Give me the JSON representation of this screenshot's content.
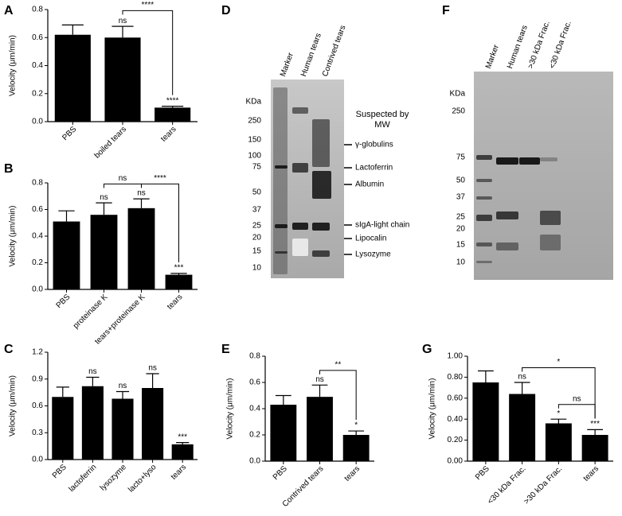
{
  "chart_data": [
    {
      "type": "bar",
      "panel": "A",
      "ylabel": "Velocity (μm/min)",
      "color": "#000000",
      "categories": [
        "PBS",
        "boiled tears",
        "tears"
      ],
      "values": [
        0.62,
        0.6,
        0.1
      ],
      "errors": [
        0.07,
        0.08,
        0.01
      ],
      "bar_labels": [
        null,
        "ns",
        "****"
      ],
      "brackets": [
        {
          "between": [
            1,
            2
          ],
          "label": "****"
        }
      ],
      "ylim": [
        0,
        0.8
      ],
      "yticks": [
        {
          "value": 0,
          "label": "0.0"
        },
        0.2,
        0.4,
        0.6,
        0.8
      ]
    },
    {
      "type": "bar",
      "panel": "B",
      "ylabel": "Velocity (μm/min)",
      "color": "#000000",
      "categories": [
        "PBS",
        "proteinase K",
        "tears+proteinase K",
        "tears"
      ],
      "values": [
        0.51,
        0.56,
        0.61,
        0.11
      ],
      "errors": [
        0.08,
        0.09,
        0.07,
        0.01
      ],
      "bar_labels": [
        null,
        "ns",
        "ns",
        "***"
      ],
      "brackets": [
        {
          "between": [
            1,
            2
          ],
          "label": "ns"
        },
        {
          "between": [
            2,
            3
          ],
          "label": "****"
        }
      ],
      "ylim": [
        0,
        0.8
      ],
      "yticks": [
        {
          "value": 0,
          "label": "0.0"
        },
        0.2,
        0.4,
        0.6,
        0.8
      ]
    },
    {
      "type": "bar",
      "panel": "C",
      "ylabel": "Velocity (μm/min)",
      "color": "#000000",
      "categories": [
        "PBS",
        "lactoferrin",
        "lysozyme",
        "lacto+lyso",
        "tears"
      ],
      "values": [
        0.7,
        0.82,
        0.68,
        0.8,
        0.17
      ],
      "errors": [
        0.11,
        0.1,
        0.08,
        0.16,
        0.02
      ],
      "bar_labels": [
        null,
        "ns",
        "ns",
        "ns",
        "***"
      ],
      "brackets": [],
      "ylim": [
        0,
        1.2
      ],
      "yticks": [
        {
          "value": 0,
          "label": "0.0"
        },
        0.3,
        0.6,
        0.9,
        1.2
      ]
    },
    {
      "type": "bar",
      "panel": "E",
      "ylabel": "Velocity (μm/min)",
      "color": "#000000",
      "categories": [
        "PBS",
        "Contrived tears",
        "tears"
      ],
      "values": [
        0.43,
        0.49,
        0.2
      ],
      "errors": [
        0.07,
        0.09,
        0.03
      ],
      "bar_labels": [
        null,
        "ns",
        "*"
      ],
      "brackets": [
        {
          "between": [
            1,
            2
          ],
          "label": "**"
        }
      ],
      "ylim": [
        0,
        0.8
      ],
      "yticks": [
        {
          "value": 0,
          "label": "0.0"
        },
        0.2,
        0.4,
        0.6,
        0.8
      ]
    },
    {
      "type": "bar",
      "panel": "G",
      "ylabel": "Velocity (μm/min)",
      "color": "#000000",
      "categories": [
        "PBS",
        "<30 kDa Frac.",
        ">30 kDa Frac.",
        "tears"
      ],
      "values": [
        0.75,
        0.64,
        0.36,
        0.25
      ],
      "errors": [
        0.11,
        0.11,
        0.04,
        0.05
      ],
      "bar_labels": [
        null,
        "ns",
        "*",
        "***"
      ],
      "brackets": [
        {
          "between": [
            1,
            3
          ],
          "label": "*"
        },
        {
          "between": [
            2,
            3
          ],
          "label": "ns"
        }
      ],
      "ylim": [
        0,
        1
      ],
      "yticks": [
        {
          "value": 0,
          "label": "0.00"
        },
        {
          "value": 0.2,
          "label": "0.20"
        },
        {
          "value": 0.4,
          "label": "0.40"
        },
        {
          "value": 0.6,
          "label": "0.60"
        },
        {
          "value": 0.8,
          "label": "0.80"
        },
        {
          "value": 1,
          "label": "1.00"
        }
      ]
    }
  ],
  "gels": [
    {
      "panel": "D",
      "lanes": [
        "Marker",
        "Human tears",
        "Contrived tears"
      ],
      "unit": "KDa",
      "markers": [
        "250",
        "150",
        "100",
        "75",
        "50",
        "37",
        "25",
        "20",
        "15",
        "10"
      ],
      "annotation_title": "Suspected by MW",
      "annotations": [
        "γ-globulins",
        "Lactoferrin",
        "Albumin",
        "sIgA-light chain",
        "Lipocalin",
        "Lysozyme"
      ]
    },
    {
      "panel": "F",
      "lanes": [
        "Marker",
        "Human tears",
        ">30 kDa Frac.",
        "<30 kDa Frac."
      ],
      "unit": "KDa",
      "markers": [
        "250",
        "75",
        "50",
        "37",
        "25",
        "20",
        "15",
        "10"
      ]
    }
  ]
}
